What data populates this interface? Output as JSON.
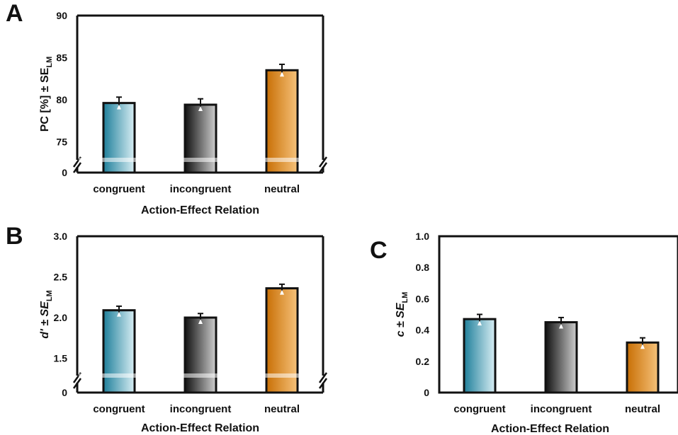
{
  "chart_data": [
    {
      "panel": "A",
      "type": "bar",
      "categories": [
        "congruent",
        "incongruent",
        "neutral"
      ],
      "values": [
        79.6,
        79.4,
        83.5
      ],
      "errors": [
        0.7,
        0.7,
        0.7
      ],
      "ylabel": {
        "main": "PC [%] ± SE",
        "sub": "LM"
      },
      "xlabel": "Action-Effect Relation",
      "yticks": [
        "0",
        "75",
        "80",
        "85",
        "90"
      ],
      "ylim": [
        72,
        90
      ],
      "axis_break": true,
      "colors": [
        "#2a93ad",
        "#3a3a3a",
        "#e08a14"
      ]
    },
    {
      "panel": "B",
      "type": "bar",
      "categories": [
        "congruent",
        "incongruent",
        "neutral"
      ],
      "values": [
        2.09,
        2.0,
        2.36
      ],
      "errors": [
        0.05,
        0.05,
        0.05
      ],
      "ylabel": {
        "main": "d' ± SE",
        "sub": "LM"
      },
      "xlabel": "Action-Effect Relation",
      "yticks": [
        "0",
        "1.5",
        "2.0",
        "2.5",
        "3.0"
      ],
      "ylim": [
        1.2,
        3.0
      ],
      "axis_break": true,
      "colors": [
        "#2a93ad",
        "#3a3a3a",
        "#e08a14"
      ]
    },
    {
      "panel": "C",
      "type": "bar",
      "categories": [
        "congruent",
        "incongruent",
        "neutral"
      ],
      "values": [
        0.47,
        0.45,
        0.32
      ],
      "errors": [
        0.03,
        0.03,
        0.03
      ],
      "ylabel": {
        "main": "c ± SE",
        "sub": "LM"
      },
      "xlabel": "Action-Effect Relation",
      "yticks": [
        "0",
        "0.2",
        "0.4",
        "0.6",
        "0.8",
        "1.0"
      ],
      "ylim": [
        0,
        1.0
      ],
      "axis_break": false,
      "colors": [
        "#2a93ad",
        "#3a3a3a",
        "#e08a14"
      ]
    }
  ]
}
